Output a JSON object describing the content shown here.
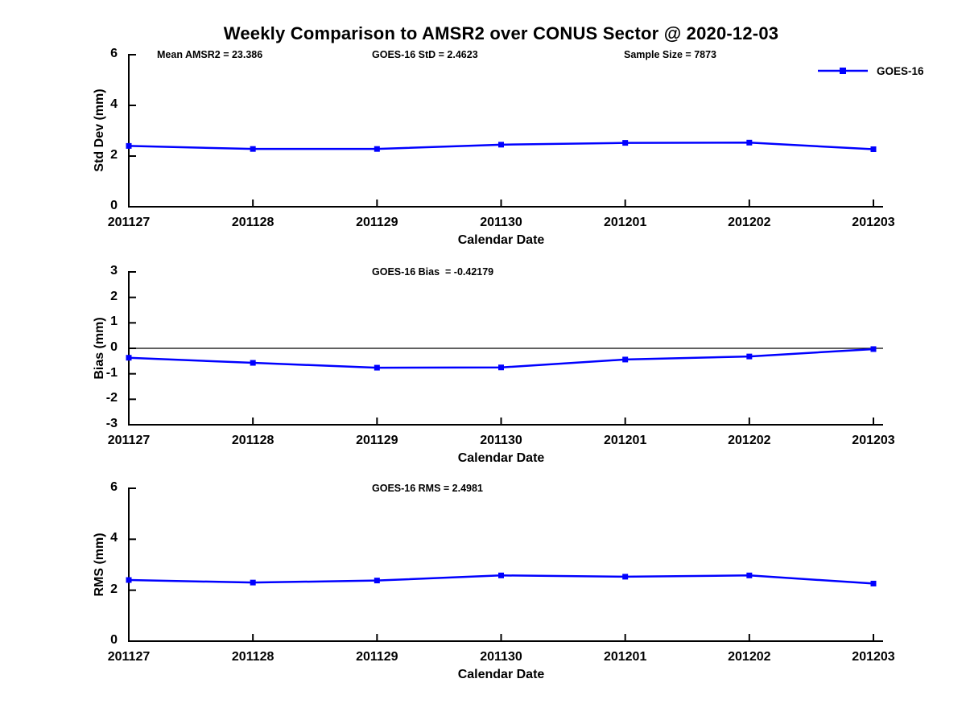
{
  "title": "Weekly Comparison to AMSR2 over CONUS Sector @ 2020-12-03",
  "legend": {
    "label": "GOES-16"
  },
  "colors": {
    "line": "#0000FF",
    "axis": "#000000",
    "text": "#000000",
    "background": "#FFFFFF"
  },
  "chart_data": [
    {
      "type": "line",
      "name": "std-dev",
      "ylabel": "Std Dev (mm)",
      "xlabel": "Calendar Date",
      "ylim": [
        0,
        6
      ],
      "yticks": [
        0,
        2,
        4,
        6
      ],
      "grid": false,
      "legend_position": "top-right",
      "categories": [
        "201127",
        "201128",
        "201129",
        "201130",
        "201201",
        "201202",
        "201203"
      ],
      "series": [
        {
          "name": "GOES-16",
          "values": [
            2.4,
            2.28,
            2.28,
            2.45,
            2.52,
            2.53,
            2.27
          ]
        }
      ],
      "annotations": [
        {
          "text": "Mean AMSR2 = 23.386"
        },
        {
          "text": "GOES-16 StD = 2.4623"
        },
        {
          "text": "Sample Size = 7873"
        }
      ]
    },
    {
      "type": "line",
      "name": "bias",
      "ylabel": "Bias (mm)",
      "xlabel": "Calendar Date",
      "ylim": [
        -3,
        3
      ],
      "yticks": [
        -3,
        -2,
        -1,
        0,
        1,
        2,
        3
      ],
      "zero_line": true,
      "grid": false,
      "categories": [
        "201127",
        "201128",
        "201129",
        "201130",
        "201201",
        "201202",
        "201203"
      ],
      "series": [
        {
          "name": "GOES-16",
          "values": [
            -0.37,
            -0.57,
            -0.76,
            -0.75,
            -0.44,
            -0.32,
            -0.03
          ]
        }
      ],
      "annotations": [
        {
          "text": "GOES-16 Bias  = -0.42179"
        }
      ]
    },
    {
      "type": "line",
      "name": "rms",
      "ylabel": "RMS (mm)",
      "xlabel": "Calendar Date",
      "ylim": [
        0,
        6
      ],
      "yticks": [
        0,
        2,
        4,
        6
      ],
      "grid": false,
      "categories": [
        "201127",
        "201128",
        "201129",
        "201130",
        "201201",
        "201202",
        "201203"
      ],
      "series": [
        {
          "name": "GOES-16",
          "values": [
            2.4,
            2.3,
            2.38,
            2.58,
            2.53,
            2.58,
            2.26
          ]
        }
      ],
      "annotations": [
        {
          "text": "GOES-16 RMS = 2.4981"
        }
      ]
    }
  ]
}
